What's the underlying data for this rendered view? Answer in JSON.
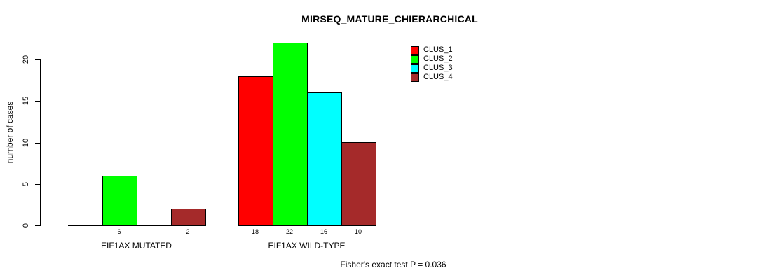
{
  "chart_data": {
    "type": "bar",
    "title": "MIRSEQ_MATURE_CHIERARCHICAL",
    "ylabel": "number of cases",
    "xlabel": "",
    "groups": [
      "EIF1AX MUTATED",
      "EIF1AX WILD-TYPE"
    ],
    "series": [
      {
        "name": "CLUS_1",
        "color": "#FF0000",
        "values": [
          0,
          18
        ]
      },
      {
        "name": "CLUS_2",
        "color": "#00FF00",
        "values": [
          6,
          22
        ]
      },
      {
        "name": "CLUS_3",
        "color": "#00FFFF",
        "values": [
          0,
          16
        ]
      },
      {
        "name": "CLUS_4",
        "color": "#A52A2A",
        "values": [
          2,
          10
        ]
      }
    ],
    "bar_value_labels": [
      [
        "",
        "6",
        "",
        "2"
      ],
      [
        "18",
        "22",
        "16",
        "10"
      ]
    ],
    "yticks": [
      "0",
      "5",
      "10",
      "15",
      "20"
    ],
    "ylim": [
      0,
      20
    ],
    "grid": false,
    "legend_position": "top-right",
    "annotation": "Fisher's exact test P = 0.036",
    "background_color": "#FFFFFF",
    "axis_color": "#000000"
  }
}
